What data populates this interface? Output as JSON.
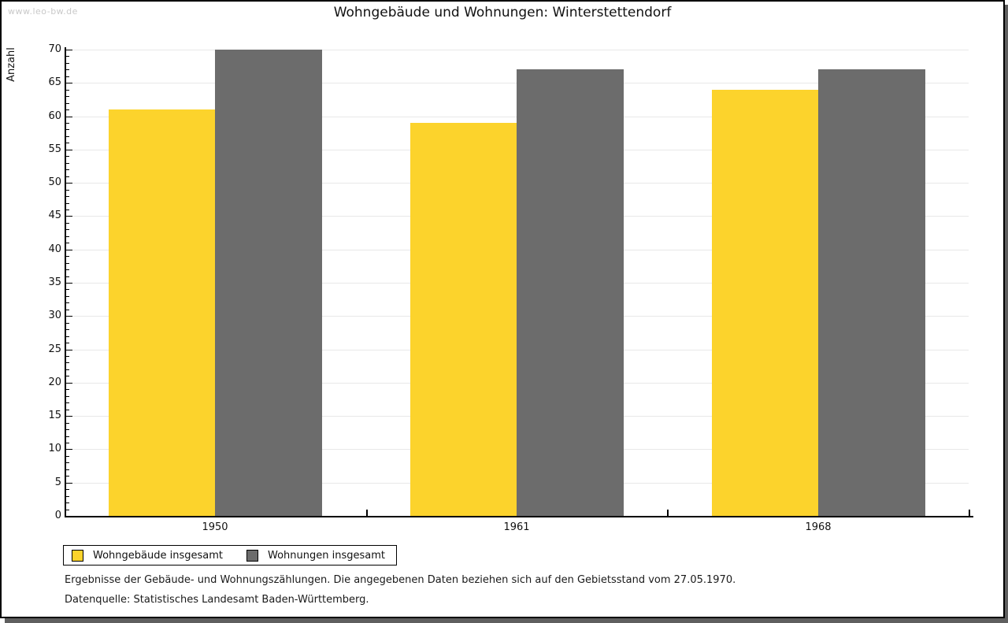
{
  "page": {
    "watermark": "www.leo-bw.de",
    "footnote1": "Ergebnisse der Gebäude- und Wohnungszählungen. Die angegebenen Daten beziehen sich auf den Gebietsstand vom 27.05.1970.",
    "footnote2": "Datenquelle: Statistisches Landesamt Baden-Württemberg."
  },
  "colors": {
    "bar_yellow": "#FCD32C",
    "bar_gray": "#6C6C6C",
    "gridline": "#e8e8e8",
    "axis": "#000000",
    "watermark": "#c9c9c9",
    "shadow": "#5f5f5f"
  },
  "chart_data": {
    "type": "bar",
    "title": "Wohngebäude und Wohnungen: Winterstettendorf",
    "ylabel": "Anzahl",
    "xlabel": "",
    "categories": [
      "1950",
      "1961",
      "1968"
    ],
    "series": [
      {
        "name": "Wohngebäude insgesamt",
        "color": "#FCD32C",
        "values": [
          61,
          59,
          64
        ]
      },
      {
        "name": "Wohnungen insgesamt",
        "color": "#6C6C6C",
        "values": [
          70,
          67,
          67
        ]
      }
    ],
    "ylim": [
      0,
      70
    ],
    "ytick_step": 5,
    "minor_tick_step": 1,
    "grid": true,
    "legend_position": "bottom-left"
  }
}
